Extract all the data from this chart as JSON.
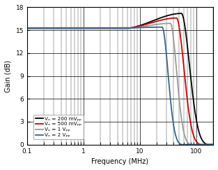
{
  "title": "",
  "xlabel": "Frequency (MHz)",
  "ylabel": "Gain (dB)",
  "ylim": [
    0,
    18
  ],
  "xlim": [
    0.1,
    200
  ],
  "yticks": [
    0,
    3,
    6,
    9,
    12,
    15,
    18
  ],
  "legend": [
    {
      "label": "Vₒ = 200 mVₚₚ",
      "color": "#000000"
    },
    {
      "label": "Vₒ = 500 mVₚₚ",
      "color": "#cc0000"
    },
    {
      "label": "Vₒ = 1 Vₚₚ",
      "color": "#999999"
    },
    {
      "label": "Vₒ = 2 Vₚₚ",
      "color": "#336688"
    }
  ],
  "bg_color": "#ffffff",
  "curves": [
    {
      "flat": 15.2,
      "peak": 17.2,
      "f_rise": 5.0,
      "f_peak": 55,
      "f_end": 160,
      "color": "#000000"
    },
    {
      "flat": 15.2,
      "peak": 16.6,
      "f_rise": 5.0,
      "f_peak": 45,
      "f_end": 120,
      "color": "#cc0000"
    },
    {
      "flat": 15.2,
      "peak": 15.9,
      "f_rise": 5.0,
      "f_peak": 35,
      "f_end": 80,
      "color": "#999999"
    },
    {
      "flat": 15.3,
      "peak": 15.4,
      "f_rise": 5.0,
      "f_peak": 25,
      "f_end": 55,
      "color": "#336688"
    }
  ]
}
